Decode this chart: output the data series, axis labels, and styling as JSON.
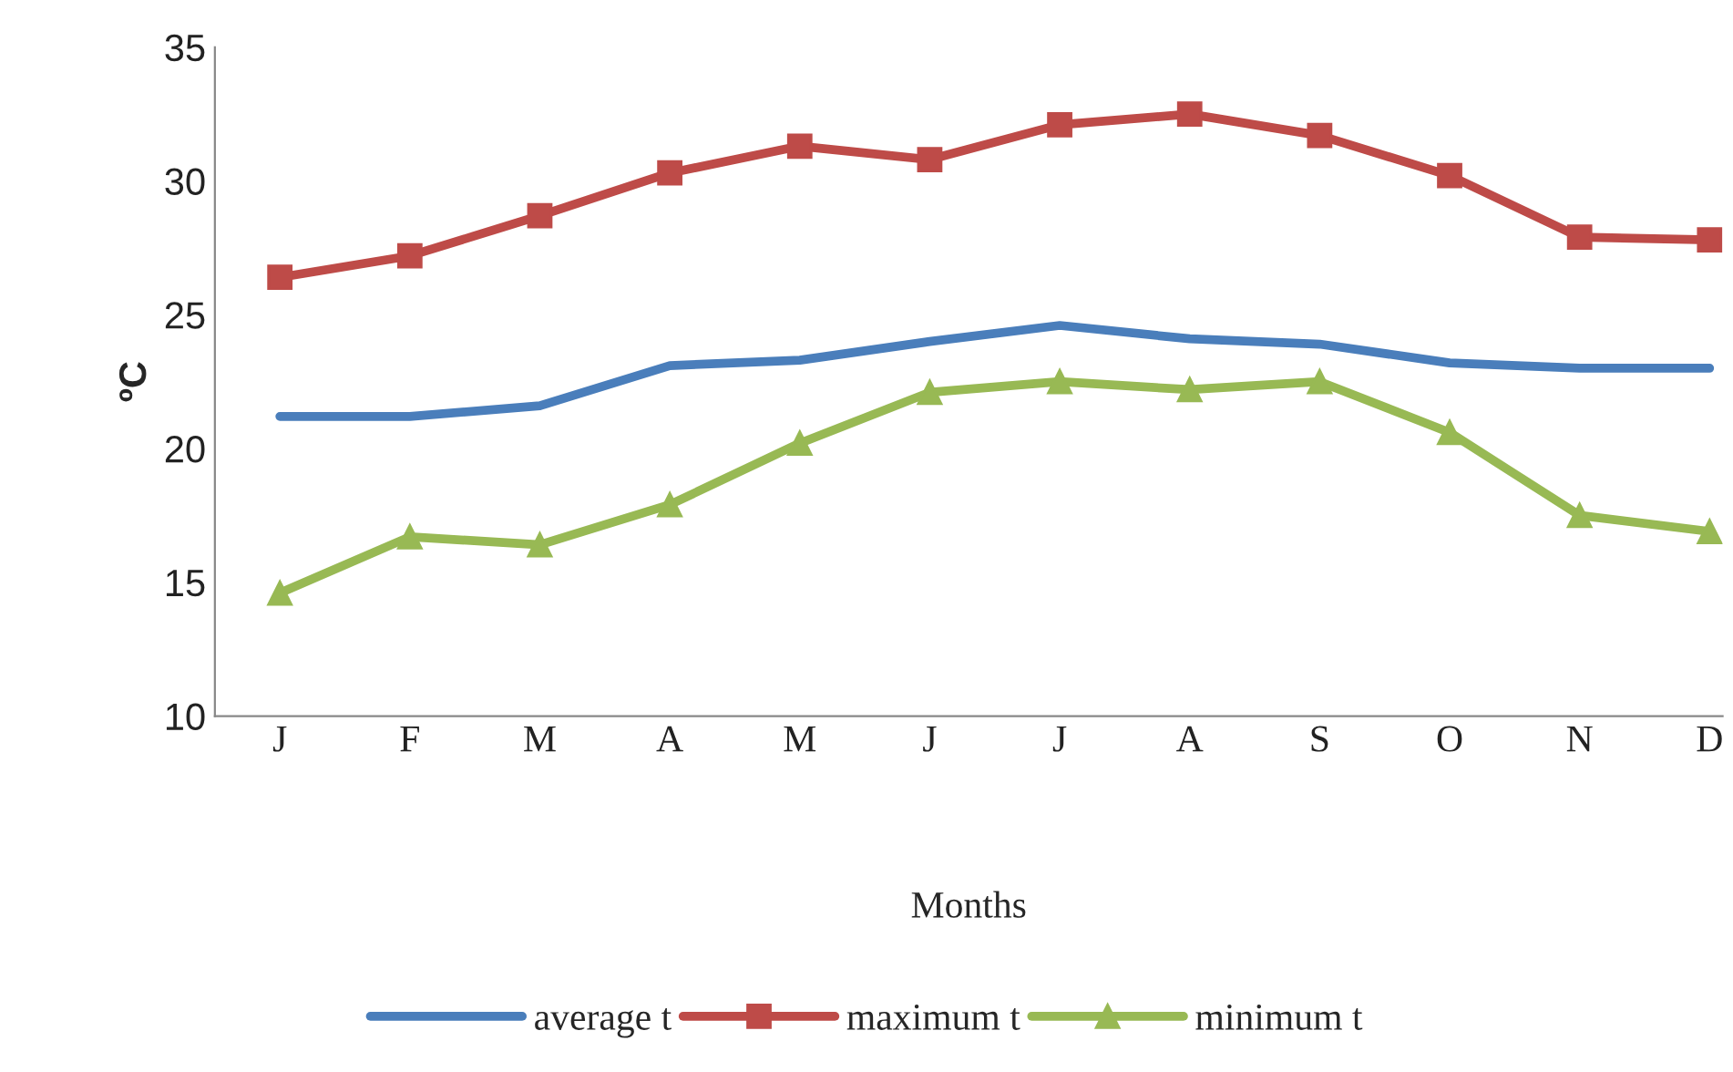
{
  "chart_data": {
    "type": "line",
    "xlabel": "Months",
    "ylabel": "ºC",
    "categories": [
      "J",
      "F",
      "M",
      "A",
      "M",
      "J",
      "J",
      "A",
      "S",
      "O",
      "N",
      "D"
    ],
    "series": [
      {
        "name": "average t",
        "color": "#4a7ebb",
        "marker": "none",
        "values": [
          21.2,
          21.2,
          21.6,
          23.1,
          23.3,
          24.0,
          24.6,
          24.1,
          23.9,
          23.2,
          23.0,
          23.0
        ]
      },
      {
        "name": "maximum t",
        "color": "#be4b48",
        "marker": "square",
        "values": [
          26.4,
          27.2,
          28.7,
          30.3,
          31.3,
          30.8,
          32.1,
          32.5,
          31.7,
          30.2,
          27.9,
          27.8
        ]
      },
      {
        "name": "minimum t",
        "color": "#98b954",
        "marker": "triangle",
        "values": [
          14.6,
          16.7,
          16.4,
          17.9,
          20.2,
          22.1,
          22.5,
          22.2,
          22.5,
          20.6,
          17.5,
          16.9
        ]
      }
    ],
    "ylim": [
      10,
      35
    ],
    "yticks": [
      10,
      15,
      20,
      25,
      30,
      35
    ],
    "grid": false,
    "legend": "bottom",
    "line_style": "solid"
  }
}
